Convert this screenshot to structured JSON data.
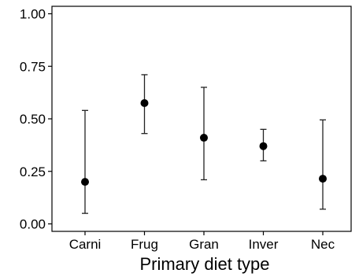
{
  "chart_data": {
    "type": "scatter",
    "title": "",
    "xlabel": "Primary diet type",
    "ylabel": "",
    "categories": [
      "Carni",
      "Frug",
      "Gran",
      "Inver",
      "Nec"
    ],
    "series": [
      {
        "values": [
          0.2,
          0.575,
          0.41,
          0.37,
          0.215
        ],
        "lower": [
          0.05,
          0.43,
          0.21,
          0.3,
          0.07
        ],
        "upper": [
          0.54,
          0.71,
          0.65,
          0.45,
          0.495
        ]
      }
    ],
    "ylim": [
      0,
      1
    ],
    "yticks": [
      {
        "value": 0,
        "label": "0.00"
      },
      {
        "value": 0.25,
        "label": "0.25"
      },
      {
        "value": 0.5,
        "label": "0.50"
      },
      {
        "value": 0.75,
        "label": "0.75"
      },
      {
        "value": 1,
        "label": "1.00"
      }
    ],
    "grid": false,
    "legend": "none",
    "colors": {
      "marker": "#000000",
      "errorbar": "#222222",
      "axis": "#000000"
    }
  }
}
